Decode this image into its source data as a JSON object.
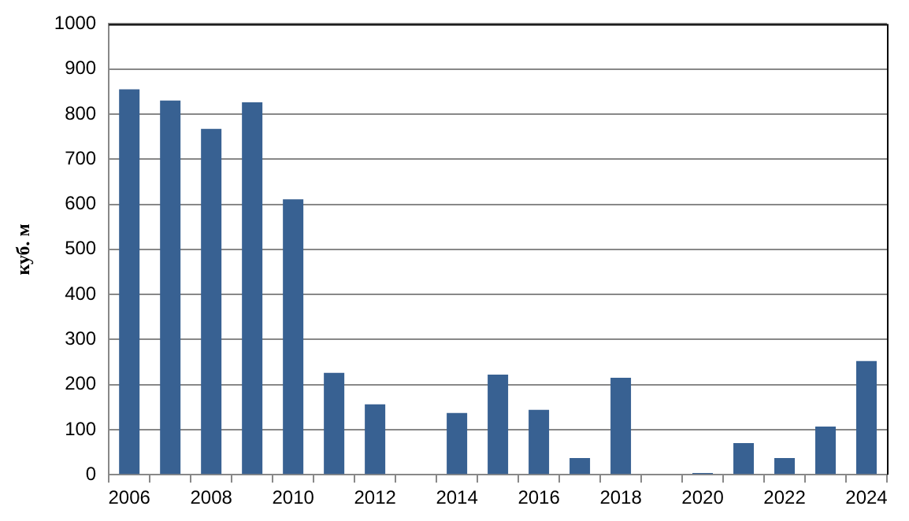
{
  "chart_data": {
    "type": "bar",
    "ylabel": "куб. м",
    "categories": [
      "2006",
      null,
      "2008",
      null,
      "2010",
      null,
      "2012",
      null,
      "2014",
      null,
      "2016",
      null,
      "2018",
      null,
      "2020",
      null,
      "2022",
      null,
      "2024"
    ],
    "values": [
      855,
      830,
      767,
      826,
      611,
      226,
      156,
      null,
      137,
      222,
      144,
      37,
      215,
      null,
      4,
      70,
      37,
      107,
      252
    ],
    "color": "#386192",
    "ylim": [
      0,
      1000
    ],
    "yticks": [
      0,
      100,
      200,
      300,
      400,
      500,
      600,
      700,
      800,
      900,
      1000
    ],
    "grid": "y",
    "legend": false
  }
}
